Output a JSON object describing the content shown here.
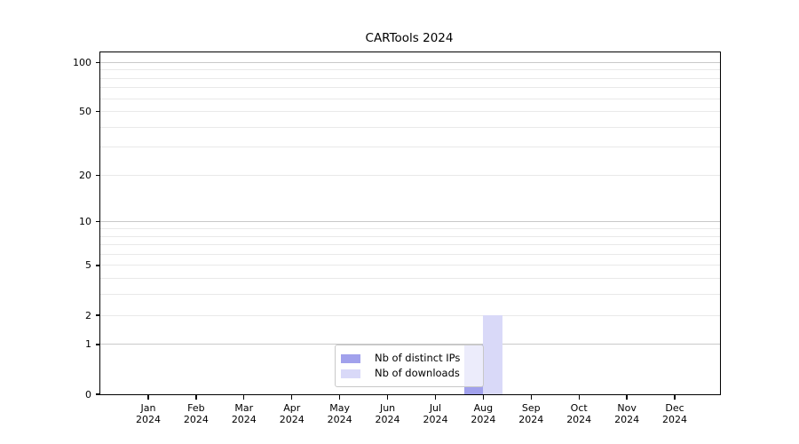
{
  "chart_data": {
    "type": "bar",
    "title": "CARTools 2024",
    "x_categories_month": [
      "Jan",
      "Feb",
      "Mar",
      "Apr",
      "May",
      "Jun",
      "Jul",
      "Aug",
      "Sep",
      "Oct",
      "Nov",
      "Dec"
    ],
    "x_year": "2024",
    "series": [
      {
        "name": "Nb of distinct IPs",
        "color": "#a1a1ec",
        "values": [
          0,
          0,
          0,
          0,
          0,
          0,
          0,
          1,
          0,
          0,
          0,
          0
        ]
      },
      {
        "name": "Nb of downloads",
        "color": "#d9d9f8",
        "values": [
          0,
          0,
          0,
          0,
          0,
          0,
          0,
          2,
          0,
          0,
          0,
          0
        ]
      }
    ],
    "yaxis": {
      "scale": "log1p",
      "ymax": 115,
      "labeled_ticks": [
        0,
        1,
        2,
        5,
        10,
        20,
        50,
        100
      ],
      "gridlines": {
        "decade": [
          1,
          10,
          100
        ],
        "minor": [
          2,
          3,
          4,
          5,
          6,
          7,
          8,
          9,
          20,
          30,
          40,
          50,
          60,
          70,
          80,
          90
        ]
      }
    },
    "legend": {
      "position": "lower center"
    },
    "grid": true,
    "colors": {
      "major_grid": "#c9c9c9",
      "minor_grid": "#e9e9e9",
      "axis": "#000000",
      "background": "#ffffff"
    }
  }
}
